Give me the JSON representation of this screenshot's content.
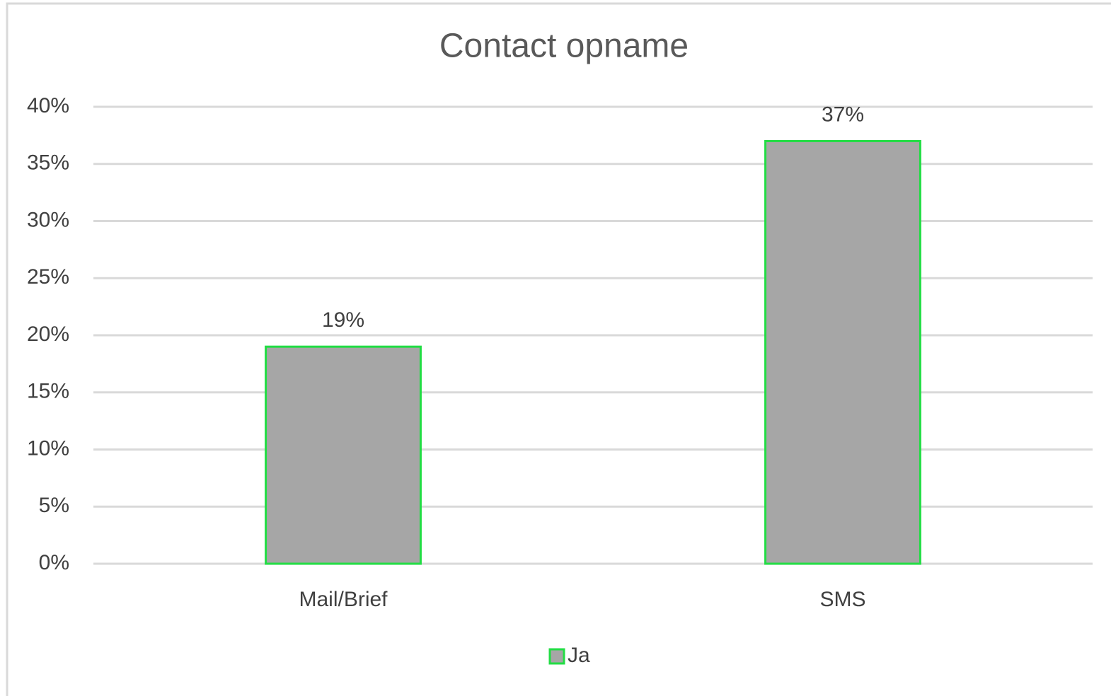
{
  "chart_data": {
    "type": "bar",
    "title": "Contact opname",
    "categories": [
      "Mail/Brief",
      "SMS"
    ],
    "series": [
      {
        "name": "Ja",
        "color": "#a6a6a6",
        "edge_color": "#22dd44",
        "values": [
          19,
          37
        ],
        "value_labels": [
          "19%",
          "37%"
        ]
      }
    ],
    "ylim": [
      0,
      40
    ],
    "yticks": [
      {
        "value": 0,
        "label": "0%"
      },
      {
        "value": 5,
        "label": "5%"
      },
      {
        "value": 10,
        "label": "10%"
      },
      {
        "value": 15,
        "label": "15%"
      },
      {
        "value": 20,
        "label": "20%"
      },
      {
        "value": 25,
        "label": "25%"
      },
      {
        "value": 30,
        "label": "30%"
      },
      {
        "value": 35,
        "label": "35%"
      },
      {
        "value": 40,
        "label": "40%"
      }
    ],
    "grid": true,
    "legend": "bottom"
  }
}
